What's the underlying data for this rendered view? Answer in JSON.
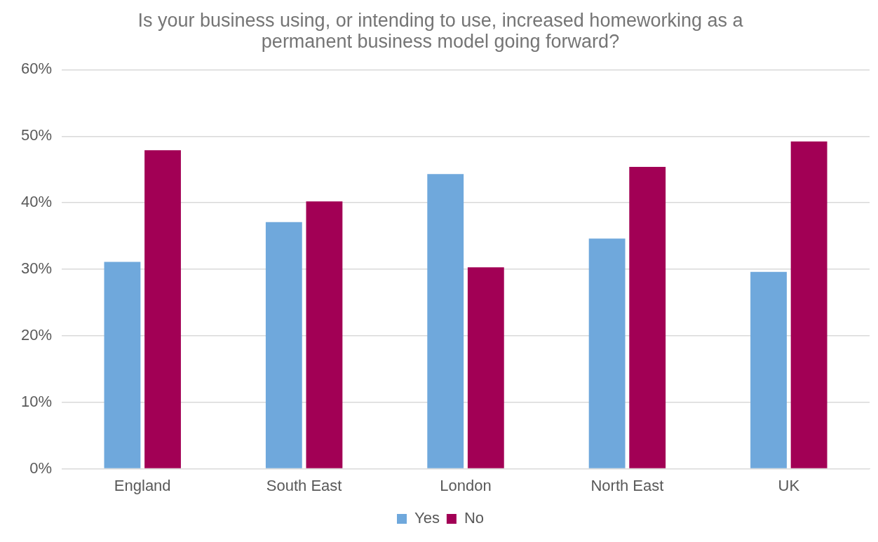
{
  "chart_data": {
    "type": "bar",
    "title": "Is your business using, or intending to use, increased homeworking as a permanent business model going forward?",
    "categories": [
      "England",
      "South East",
      "London",
      "North East",
      "UK"
    ],
    "series": [
      {
        "name": "Yes",
        "color": "#6fa8dc",
        "values": [
          31.1,
          37.1,
          44.3,
          34.6,
          29.6
        ]
      },
      {
        "name": "No",
        "color": "#a20055",
        "values": [
          47.9,
          40.2,
          30.3,
          45.4,
          49.2
        ]
      }
    ],
    "ylim": [
      0,
      60
    ],
    "yticks": [
      {
        "value": 0,
        "label": "0%"
      },
      {
        "value": 10,
        "label": "10%"
      },
      {
        "value": 20,
        "label": "20%"
      },
      {
        "value": 30,
        "label": "30%"
      },
      {
        "value": 40,
        "label": "40%"
      },
      {
        "value": 50,
        "label": "50%"
      },
      {
        "value": 60,
        "label": "60%"
      }
    ],
    "grid": "y",
    "legend": "bottom"
  }
}
